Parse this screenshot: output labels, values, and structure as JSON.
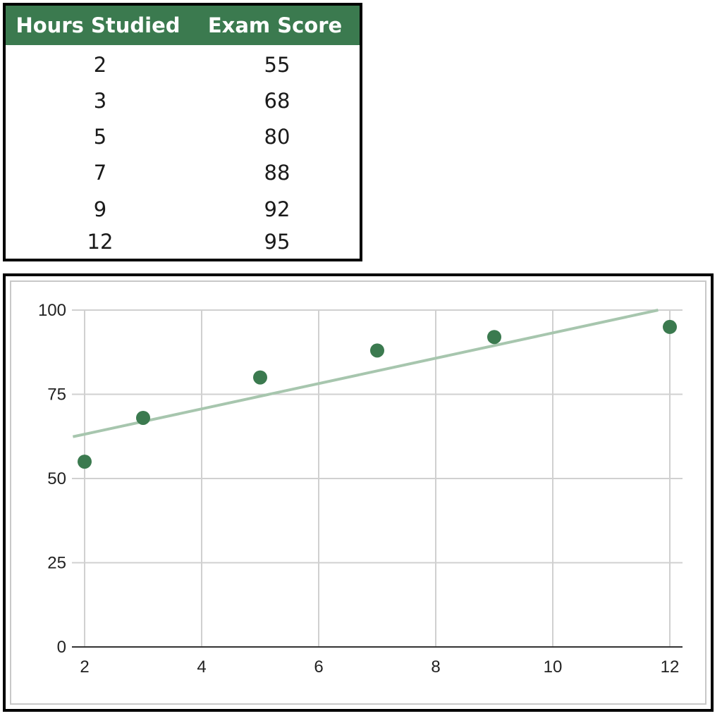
{
  "table": {
    "headers": [
      "Hours Studied",
      "Exam Score"
    ],
    "rows": [
      [
        "2",
        "55"
      ],
      [
        "3",
        "68"
      ],
      [
        "5",
        "80"
      ],
      [
        "7",
        "88"
      ],
      [
        "9",
        "92"
      ],
      [
        "12",
        "95"
      ]
    ],
    "header_color": "#3b7a4f"
  },
  "chart_data": {
    "type": "scatter",
    "title": "",
    "xlabel": "",
    "ylabel": "",
    "x": [
      2,
      3,
      5,
      7,
      9,
      12
    ],
    "y": [
      55,
      68,
      80,
      88,
      92,
      95
    ],
    "xlim": [
      2,
      12
    ],
    "ylim": [
      0,
      100
    ],
    "x_ticks": [
      2,
      4,
      6,
      8,
      10,
      12
    ],
    "y_ticks": [
      0,
      25,
      50,
      75,
      100
    ],
    "grid": true,
    "legend": "none",
    "trendline": {
      "type": "linear",
      "from": [
        1.8,
        62.4
      ],
      "to": [
        11.8,
        100
      ]
    },
    "colors": {
      "points": "#3b7a4f",
      "trendline": "#a7c6ae",
      "grid": "#d0d0d0",
      "axis": "#333333"
    }
  }
}
